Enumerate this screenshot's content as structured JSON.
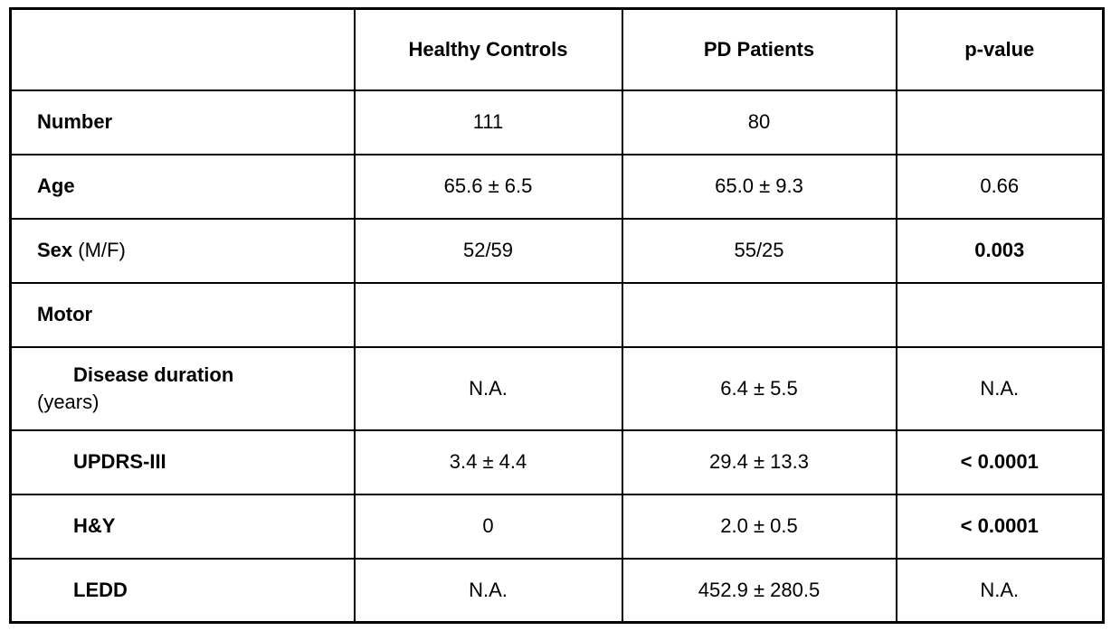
{
  "page": {
    "background_color": "#ffffff",
    "border_color": "#000000",
    "text_color": "#000000"
  },
  "table": {
    "columns": [
      "",
      "Healthy Controls",
      "PD Patients",
      "p-value"
    ],
    "rows": [
      {
        "label": "Number",
        "suffix": "",
        "suffix_newline": false,
        "indent": false,
        "healthy_controls": "111",
        "pd_patients": "80",
        "p_value": "",
        "p_bold": false
      },
      {
        "label": "Age",
        "suffix": "",
        "suffix_newline": false,
        "indent": false,
        "healthy_controls": "65.6 ± 6.5",
        "pd_patients": "65.0 ± 9.3",
        "p_value": "0.66",
        "p_bold": false
      },
      {
        "label": "Sex",
        "suffix": " (M/F)",
        "suffix_newline": false,
        "indent": false,
        "healthy_controls": "52/59",
        "pd_patients": "55/25",
        "p_value": "0.003",
        "p_bold": true
      },
      {
        "label": "Motor",
        "suffix": "",
        "suffix_newline": false,
        "indent": false,
        "healthy_controls": "",
        "pd_patients": "",
        "p_value": "",
        "p_bold": false
      },
      {
        "label": "Disease duration",
        "suffix": "(years)",
        "suffix_newline": true,
        "indent": true,
        "healthy_controls": "N.A.",
        "pd_patients": "6.4 ± 5.5",
        "p_value": "N.A.",
        "p_bold": false
      },
      {
        "label": "UPDRS-III",
        "suffix": "",
        "suffix_newline": false,
        "indent": true,
        "healthy_controls": "3.4 ± 4.4",
        "pd_patients": "29.4 ± 13.3",
        "p_value": "< 0.0001",
        "p_bold": true
      },
      {
        "label": "H&Y",
        "suffix": "",
        "suffix_newline": false,
        "indent": true,
        "healthy_controls": "0",
        "pd_patients": "2.0 ± 0.5",
        "p_value": "< 0.0001",
        "p_bold": true
      },
      {
        "label": "LEDD",
        "suffix": "",
        "suffix_newline": false,
        "indent": true,
        "healthy_controls": "N.A.",
        "pd_patients": "452.9 ± 280.5",
        "p_value": "N.A.",
        "p_bold": false
      }
    ]
  }
}
